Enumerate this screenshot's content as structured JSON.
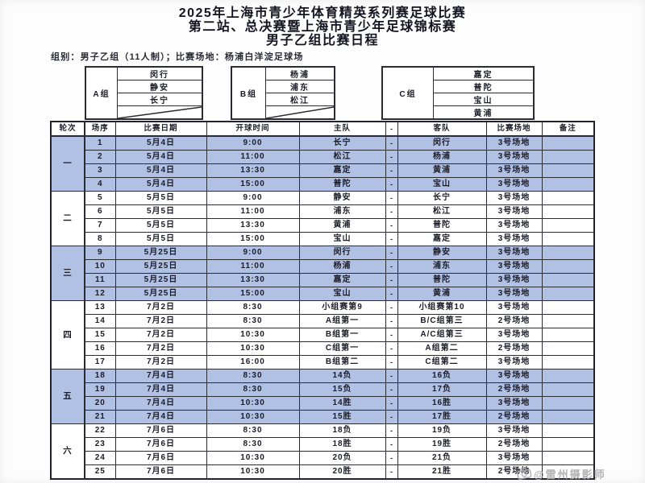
{
  "title": {
    "line1": "2025年上海市青少年体育精英系列赛足球比赛",
    "line2": "第二站、总决赛暨上海市青少年足球锦标赛",
    "line3": "男子乙组比赛日程"
  },
  "info_line": "组别：男子乙组（11人制）；比赛场地：杨浦白洋淀足球场",
  "groups": [
    {
      "label": "A组",
      "teams": [
        "闵行",
        "静安",
        "长宁",
        ""
      ],
      "has_diagonal": true
    },
    {
      "label": "B组",
      "teams": [
        "杨浦",
        "浦东",
        "松江",
        ""
      ],
      "has_diagonal": true
    },
    {
      "label": "C组",
      "teams": [
        "嘉定",
        "普陀",
        "宝山",
        "黄浦"
      ],
      "has_diagonal": false
    }
  ],
  "schedule": {
    "headers": [
      "轮次",
      "场序",
      "比赛日期",
      "开球时间",
      "主队",
      "-",
      "客队",
      "比赛场地",
      "备注"
    ],
    "rounds": [
      {
        "round": "一",
        "highlighted": true,
        "matches": [
          {
            "no": "1",
            "date": "5月4日",
            "time": "9:00",
            "home": "长宁",
            "vs": "-",
            "away": "闵行",
            "venue": "3号场地",
            "note": ""
          },
          {
            "no": "2",
            "date": "5月4日",
            "time": "11:00",
            "home": "松江",
            "vs": "-",
            "away": "杨浦",
            "venue": "3号场地",
            "note": ""
          },
          {
            "no": "3",
            "date": "5月4日",
            "time": "13:30",
            "home": "嘉定",
            "vs": "-",
            "away": "黄浦",
            "venue": "3号场地",
            "note": ""
          },
          {
            "no": "4",
            "date": "5月4日",
            "time": "15:00",
            "home": "普陀",
            "vs": "-",
            "away": "宝山",
            "venue": "3号场地",
            "note": ""
          }
        ]
      },
      {
        "round": "二",
        "highlighted": false,
        "matches": [
          {
            "no": "5",
            "date": "5月5日",
            "time": "9:00",
            "home": "静安",
            "vs": "-",
            "away": "长宁",
            "venue": "3号场地",
            "note": ""
          },
          {
            "no": "6",
            "date": "5月5日",
            "time": "11:00",
            "home": "浦东",
            "vs": "-",
            "away": "松江",
            "venue": "3号场地",
            "note": ""
          },
          {
            "no": "7",
            "date": "5月5日",
            "time": "13:30",
            "home": "黄浦",
            "vs": "-",
            "away": "普陀",
            "venue": "3号场地",
            "note": ""
          },
          {
            "no": "8",
            "date": "5月5日",
            "time": "15:00",
            "home": "宝山",
            "vs": "-",
            "away": "嘉定",
            "venue": "3号场地",
            "note": ""
          }
        ]
      },
      {
        "round": "三",
        "highlighted": true,
        "matches": [
          {
            "no": "9",
            "date": "5月25日",
            "time": "9:00",
            "home": "闵行",
            "vs": "-",
            "away": "静安",
            "venue": "3号场地",
            "note": ""
          },
          {
            "no": "10",
            "date": "5月25日",
            "time": "11:00",
            "home": "杨浦",
            "vs": "-",
            "away": "浦东",
            "venue": "3号场地",
            "note": ""
          },
          {
            "no": "11",
            "date": "5月25日",
            "time": "13:30",
            "home": "嘉定",
            "vs": "-",
            "away": "普陀",
            "venue": "3号场地",
            "note": ""
          },
          {
            "no": "12",
            "date": "5月25日",
            "time": "15:00",
            "home": "宝山",
            "vs": "-",
            "away": "黄浦",
            "venue": "3号场地",
            "note": ""
          }
        ]
      },
      {
        "round": "四",
        "highlighted": false,
        "matches": [
          {
            "no": "13",
            "date": "7月2日",
            "time": "8:30",
            "home": "小组赛第9",
            "vs": "-",
            "away": "小组赛第10",
            "venue": "3号场地",
            "note": ""
          },
          {
            "no": "14",
            "date": "7月2日",
            "time": "8:30",
            "home": "A组第一",
            "vs": "-",
            "away": "B/C组第三",
            "venue": "2号场地",
            "note": ""
          },
          {
            "no": "15",
            "date": "7月2日",
            "time": "10:30",
            "home": "B组第一",
            "vs": "-",
            "away": "A/C组第三",
            "venue": "3号场地",
            "note": ""
          },
          {
            "no": "16",
            "date": "7月2日",
            "time": "10:30",
            "home": "C组第一",
            "vs": "-",
            "away": "A组第二",
            "venue": "2号场地",
            "note": ""
          },
          {
            "no": "17",
            "date": "7月2日",
            "time": "16:00",
            "home": "B组第二",
            "vs": "-",
            "away": "C组第二",
            "venue": "3号场地",
            "note": ""
          }
        ]
      },
      {
        "round": "五",
        "highlighted": true,
        "matches": [
          {
            "no": "18",
            "date": "7月4日",
            "time": "8:30",
            "home": "14负",
            "vs": "-",
            "away": "16负",
            "venue": "3号场地",
            "note": ""
          },
          {
            "no": "19",
            "date": "7月4日",
            "time": "8:30",
            "home": "15负",
            "vs": "-",
            "away": "17负",
            "venue": "2号场地",
            "note": ""
          },
          {
            "no": "20",
            "date": "7月4日",
            "time": "10:30",
            "home": "14胜",
            "vs": "-",
            "away": "16胜",
            "venue": "3号场地",
            "note": ""
          },
          {
            "no": "21",
            "date": "7月4日",
            "time": "10:30",
            "home": "15胜",
            "vs": "-",
            "away": "17胜",
            "venue": "2号场地",
            "note": ""
          }
        ]
      },
      {
        "round": "六",
        "highlighted": false,
        "matches": [
          {
            "no": "22",
            "date": "7月6日",
            "time": "8:30",
            "home": "18负",
            "vs": "-",
            "away": "19负",
            "venue": "3号场地",
            "note": ""
          },
          {
            "no": "23",
            "date": "7月6日",
            "time": "8:30",
            "home": "18胜",
            "vs": "-",
            "away": "19胜",
            "venue": "2号场地",
            "note": ""
          },
          {
            "no": "24",
            "date": "7月6日",
            "time": "10:30",
            "home": "20负",
            "vs": "-",
            "away": "21负",
            "venue": "3号场地",
            "note": ""
          },
          {
            "no": "25",
            "date": "7月6日",
            "time": "10:30",
            "home": "20胜",
            "vs": "-",
            "away": "21胜",
            "venue": "2号场地",
            "note": ""
          }
        ]
      }
    ]
  },
  "watermark": {
    "text": "@雷州摄影师",
    "icon": "camera-icon"
  },
  "colors": {
    "highlight_row": "#b0c1e4",
    "border": "#2b2b33",
    "text": "#1c1c28",
    "watermark": "#ababab"
  }
}
